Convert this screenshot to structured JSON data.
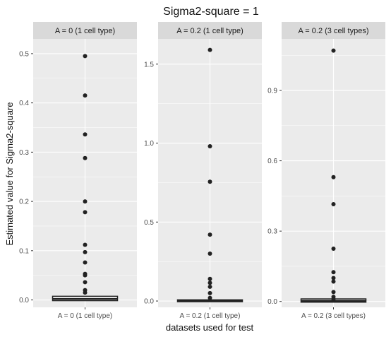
{
  "chart_data": {
    "type": "box",
    "title": "Sigma2-square = 1",
    "xlabel": "datasets used for test",
    "ylabel": "Estimated value for Sigma2-square",
    "colors": {
      "panel_bg": "#ebebeb",
      "strip_bg": "#d9d9d9",
      "grid": "#ffffff",
      "points": "#222222",
      "box": "#222222"
    },
    "panels": [
      {
        "strip": "A = 0 (1 cell type)",
        "category": "A = 0 (1 cell type)",
        "ylim": [
          -0.015,
          0.53
        ],
        "yticks": [
          0.0,
          0.1,
          0.2,
          0.3,
          0.4,
          0.5
        ],
        "ytick_labels": [
          "0.0",
          "0.1",
          "0.2",
          "0.3",
          "0.4",
          "0.5"
        ],
        "box": {
          "q1": 0.0,
          "median": 0.002,
          "q3": 0.006
        },
        "outliers": [
          0.495,
          0.415,
          0.336,
          0.288,
          0.2,
          0.178,
          0.112,
          0.097,
          0.076,
          0.053,
          0.05,
          0.036,
          0.02,
          0.015
        ]
      },
      {
        "strip": "A = 0.2 (1 cell type)",
        "category": "A = 0.2 (1 cell type)",
        "ylim": [
          -0.04,
          1.66
        ],
        "yticks": [
          0.0,
          0.5,
          1.0,
          1.5
        ],
        "ytick_labels": [
          "0.0",
          "0.5",
          "1.0",
          "1.5"
        ],
        "box": {
          "q1": 0.0,
          "median": 0.001,
          "q3": 0.003
        },
        "outliers": [
          1.59,
          0.98,
          0.755,
          0.42,
          0.3,
          0.14,
          0.115,
          0.09,
          0.05,
          0.02
        ]
      },
      {
        "strip": "A = 0.2 (3 cell types)",
        "category": "A = 0.2 (3 cell types)",
        "ylim": [
          -0.025,
          1.12
        ],
        "yticks": [
          0.0,
          0.3,
          0.6,
          0.9
        ],
        "ytick_labels": [
          "0.0",
          "0.3",
          "0.6",
          "0.9"
        ],
        "box": {
          "q1": 0.0,
          "median": 0.003,
          "q3": 0.008
        },
        "outliers": [
          1.07,
          0.53,
          0.415,
          0.225,
          0.125,
          0.1,
          0.085,
          0.04,
          0.02,
          0.01
        ]
      }
    ]
  }
}
